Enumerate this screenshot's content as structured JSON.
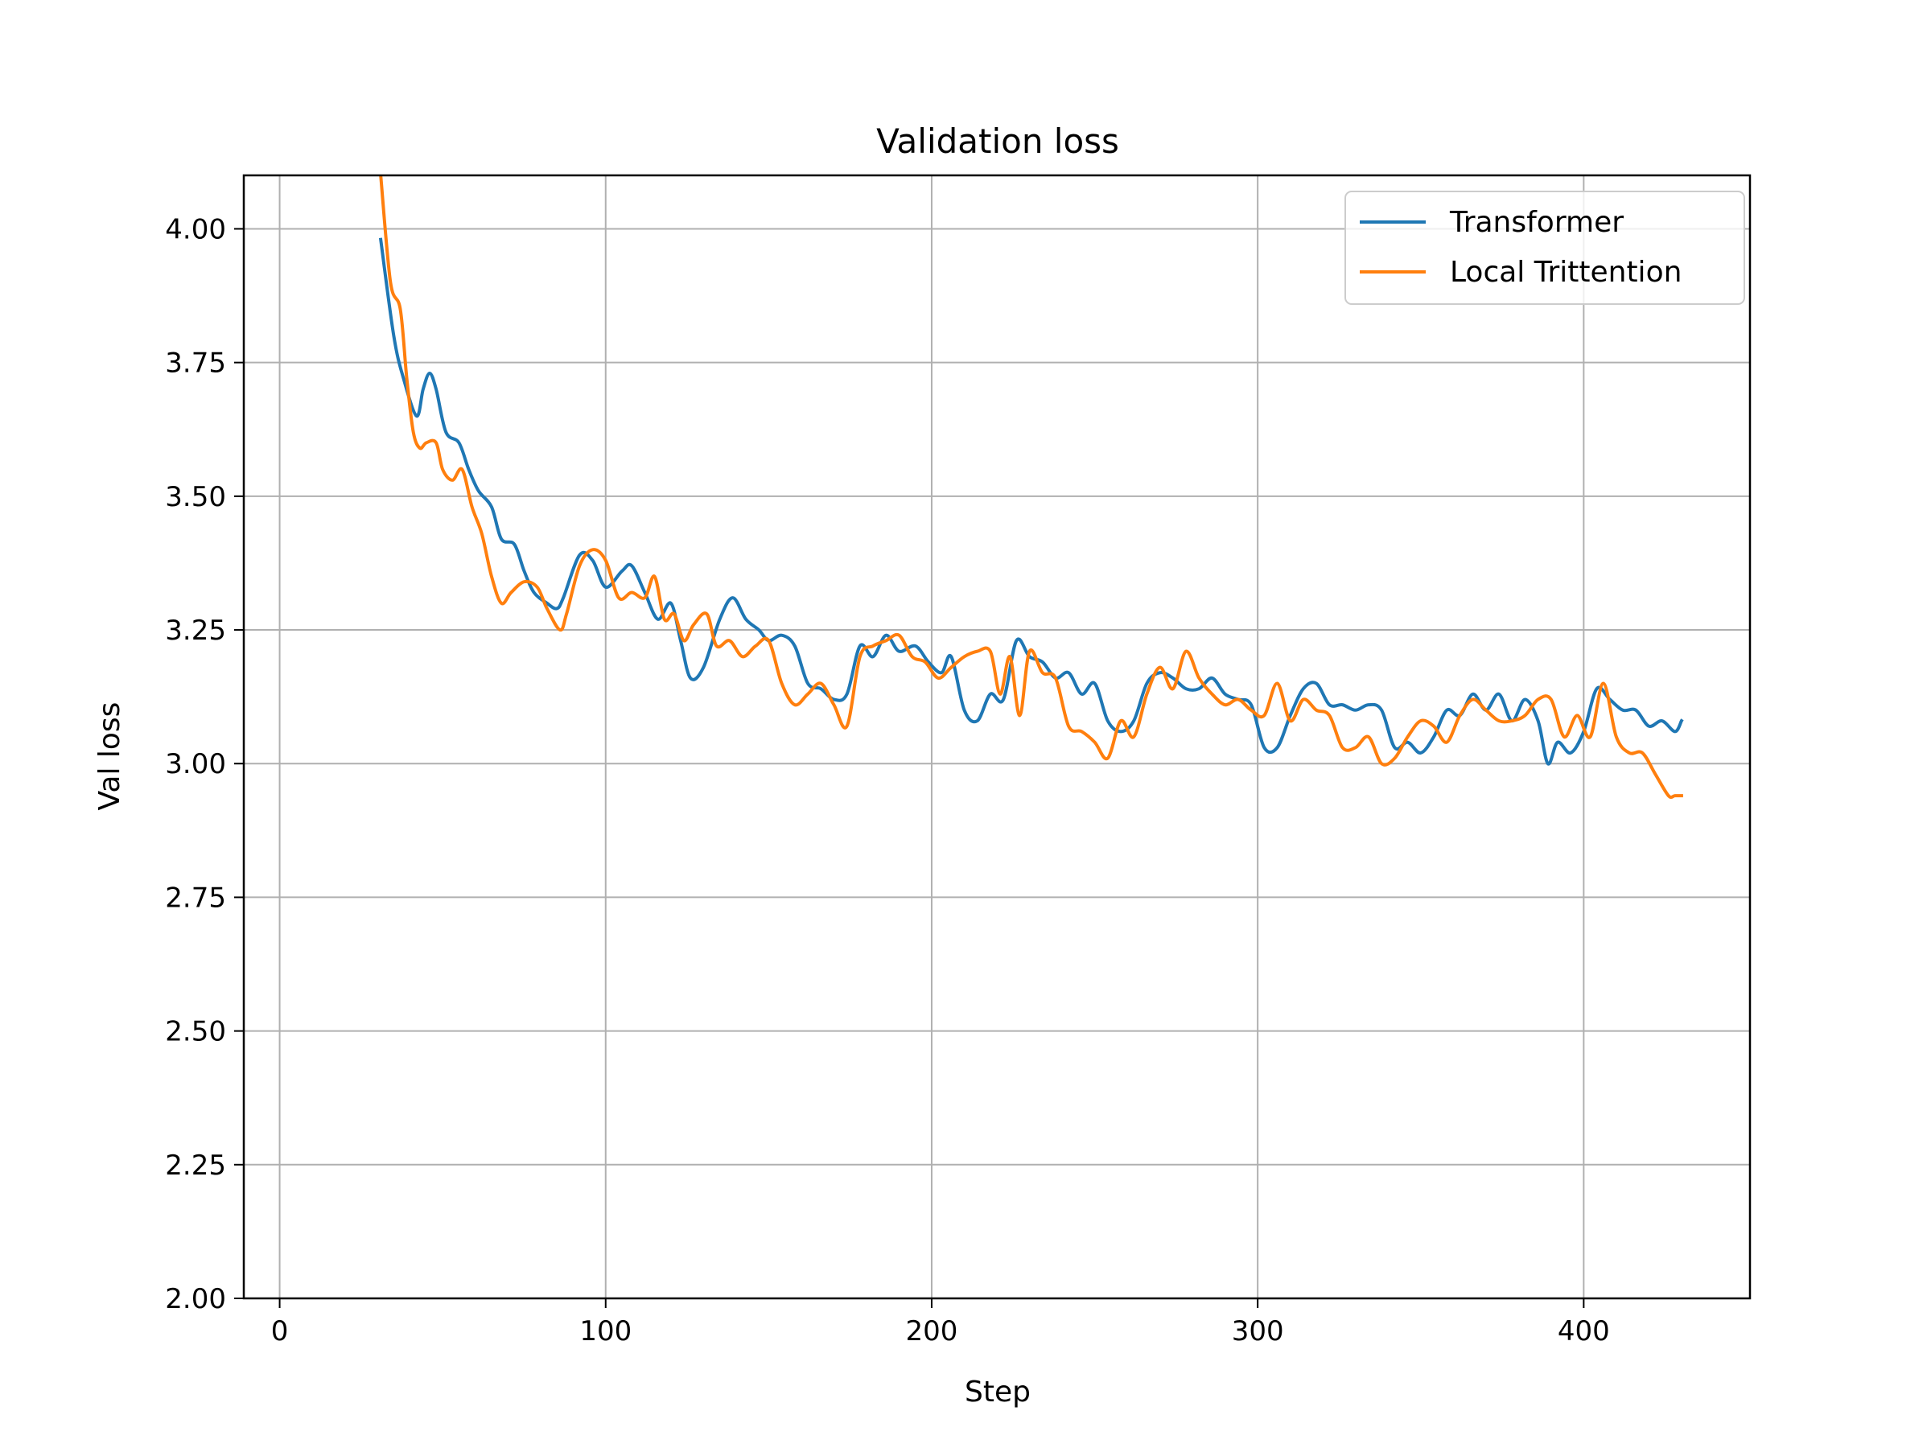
{
  "chart_data": {
    "type": "line",
    "title": "Validation loss",
    "xlabel": "Step",
    "ylabel": "Val loss",
    "xlim": [
      -11,
      451
    ],
    "ylim": [
      2.0,
      4.1
    ],
    "xticks": [
      0,
      100,
      200,
      300,
      400
    ],
    "xtick_labels": [
      "0",
      "100",
      "200",
      "300",
      "400"
    ],
    "yticks": [
      2.0,
      2.25,
      2.5,
      2.75,
      3.0,
      3.25,
      3.5,
      3.75,
      4.0
    ],
    "ytick_labels": [
      "2.00",
      "2.25",
      "2.50",
      "2.75",
      "3.00",
      "3.25",
      "3.50",
      "3.75",
      "4.00"
    ],
    "grid": true,
    "legend_position": "top-right",
    "series": [
      {
        "name": "Transformer",
        "color": "#1f77b4",
        "x": [
          31,
          35,
          38,
          42,
          44,
          46,
          48,
          51,
          55,
          58,
          61,
          65,
          68,
          72,
          75,
          78,
          82,
          85,
          87,
          92,
          96,
          100,
          105,
          108,
          112,
          116,
          120,
          123,
          126,
          130,
          135,
          139,
          143,
          147,
          150,
          154,
          158,
          162,
          166,
          170,
          174,
          178,
          182,
          186,
          190,
          195,
          199,
          203,
          206,
          210,
          214,
          218,
          222,
          226,
          230,
          234,
          238,
          242,
          246,
          250,
          254,
          258,
          262,
          266,
          270,
          274,
          278,
          282,
          286,
          290,
          294,
          298,
          302,
          306,
          310,
          314,
          318,
          322,
          326,
          330,
          334,
          338,
          342,
          346,
          350,
          354,
          358,
          362,
          366,
          370,
          374,
          378,
          382,
          386,
          389,
          392,
          396,
          400,
          404,
          408,
          412,
          416,
          420,
          424,
          428,
          430
        ],
        "y": [
          3.98,
          3.8,
          3.72,
          3.65,
          3.7,
          3.73,
          3.7,
          3.62,
          3.6,
          3.55,
          3.51,
          3.48,
          3.42,
          3.41,
          3.36,
          3.32,
          3.3,
          3.29,
          3.31,
          3.39,
          3.38,
          3.33,
          3.36,
          3.37,
          3.32,
          3.27,
          3.3,
          3.23,
          3.16,
          3.18,
          3.27,
          3.31,
          3.27,
          3.25,
          3.23,
          3.24,
          3.22,
          3.15,
          3.14,
          3.12,
          3.13,
          3.22,
          3.2,
          3.24,
          3.21,
          3.22,
          3.19,
          3.17,
          3.2,
          3.1,
          3.08,
          3.13,
          3.12,
          3.23,
          3.2,
          3.19,
          3.16,
          3.17,
          3.13,
          3.15,
          3.08,
          3.06,
          3.08,
          3.15,
          3.17,
          3.16,
          3.14,
          3.14,
          3.16,
          3.13,
          3.12,
          3.11,
          3.03,
          3.03,
          3.09,
          3.14,
          3.15,
          3.11,
          3.11,
          3.1,
          3.11,
          3.1,
          3.03,
          3.04,
          3.02,
          3.05,
          3.1,
          3.09,
          3.13,
          3.1,
          3.13,
          3.08,
          3.12,
          3.08,
          3.0,
          3.04,
          3.02,
          3.06,
          3.14,
          3.12,
          3.1,
          3.1,
          3.07,
          3.08,
          3.06,
          3.08
        ]
      },
      {
        "name": "Local Trittention",
        "color": "#ff7f0e",
        "x": [
          31,
          34,
          37,
          39,
          41,
          43,
          45,
          48,
          50,
          53,
          56,
          59,
          62,
          65,
          68,
          71,
          75,
          79,
          82,
          86,
          88,
          92,
          96,
          100,
          104,
          108,
          112,
          115,
          118,
          121,
          124,
          127,
          131,
          134,
          138,
          142,
          146,
          150,
          154,
          158,
          162,
          166,
          170,
          174,
          178,
          182,
          186,
          190,
          194,
          198,
          202,
          206,
          210,
          214,
          218,
          221,
          224,
          227,
          230,
          234,
          238,
          242,
          246,
          250,
          254,
          258,
          262,
          266,
          270,
          274,
          278,
          282,
          286,
          290,
          294,
          298,
          302,
          306,
          310,
          314,
          318,
          322,
          326,
          330,
          334,
          338,
          342,
          346,
          350,
          354,
          358,
          362,
          366,
          370,
          374,
          378,
          382,
          386,
          390,
          394,
          398,
          402,
          406,
          410,
          414,
          418,
          422,
          426,
          428,
          430
        ],
        "y": [
          4.1,
          3.9,
          3.85,
          3.72,
          3.62,
          3.59,
          3.6,
          3.6,
          3.55,
          3.53,
          3.55,
          3.48,
          3.43,
          3.35,
          3.3,
          3.32,
          3.34,
          3.33,
          3.29,
          3.25,
          3.28,
          3.37,
          3.4,
          3.38,
          3.31,
          3.32,
          3.31,
          3.35,
          3.27,
          3.28,
          3.23,
          3.26,
          3.28,
          3.22,
          3.23,
          3.2,
          3.22,
          3.23,
          3.15,
          3.11,
          3.13,
          3.15,
          3.11,
          3.07,
          3.2,
          3.22,
          3.23,
          3.24,
          3.2,
          3.19,
          3.16,
          3.18,
          3.2,
          3.21,
          3.21,
          3.13,
          3.2,
          3.09,
          3.21,
          3.17,
          3.16,
          3.07,
          3.06,
          3.04,
          3.01,
          3.08,
          3.05,
          3.13,
          3.18,
          3.14,
          3.21,
          3.16,
          3.13,
          3.11,
          3.12,
          3.1,
          3.09,
          3.15,
          3.08,
          3.12,
          3.1,
          3.09,
          3.03,
          3.03,
          3.05,
          3.0,
          3.01,
          3.05,
          3.08,
          3.07,
          3.04,
          3.09,
          3.12,
          3.1,
          3.08,
          3.08,
          3.09,
          3.12,
          3.12,
          3.05,
          3.09,
          3.05,
          3.15,
          3.05,
          3.02,
          3.02,
          2.98,
          2.94,
          2.94,
          2.94
        ]
      }
    ]
  }
}
